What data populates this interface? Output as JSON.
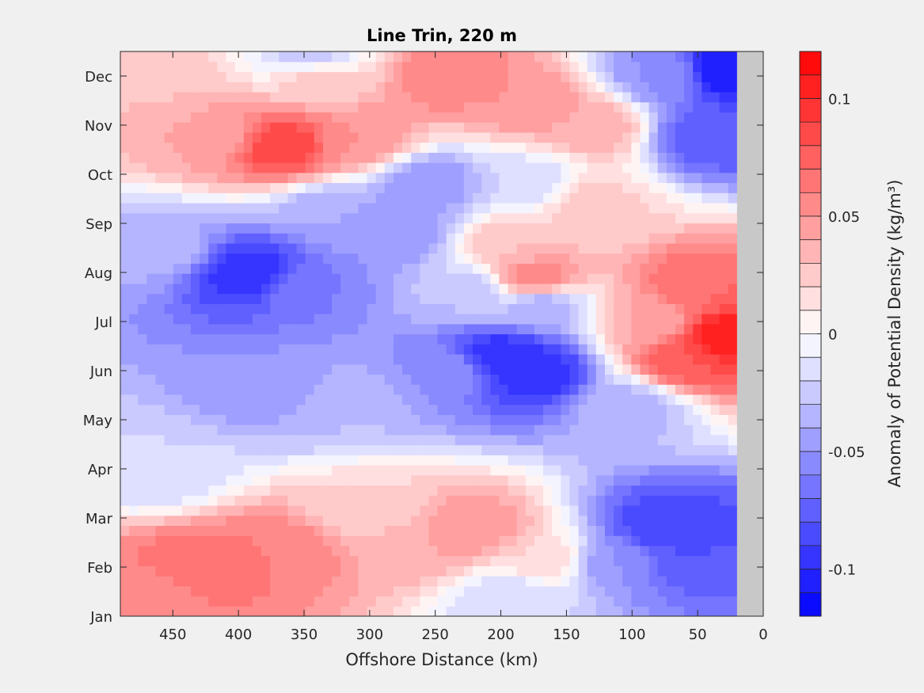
{
  "chart_data": {
    "type": "heatmap",
    "subtype": "filled-contour",
    "title": "Line Trin, 220 m",
    "xlabel": "Offshore Distance (km)",
    "ylabel": "",
    "xlim": [
      490,
      0
    ],
    "x_reversed": true,
    "x_ticks": [
      450,
      400,
      350,
      300,
      250,
      200,
      150,
      100,
      50,
      0
    ],
    "x_tick_labels": [
      "450",
      "400",
      "350",
      "300",
      "250",
      "200",
      "150",
      "100",
      "50",
      "0"
    ],
    "y_categories": [
      "Jan",
      "Feb",
      "Mar",
      "Apr",
      "May",
      "Jun",
      "Jul",
      "Aug",
      "Sep",
      "Oct",
      "Nov",
      "Dec"
    ],
    "ylim_months": [
      0,
      11.5
    ],
    "no_data_region_km": [
      0,
      20
    ],
    "no_data_color": "#c8c8c8",
    "colorbar": {
      "label": "Anomaly of Potential Density (kg/m³)",
      "ticks": [
        0.1,
        0.05,
        0,
        -0.05,
        -0.1
      ],
      "tick_labels": [
        "0.1",
        "0.05",
        "0",
        "-0.05",
        "-0.1"
      ],
      "range": [
        -0.12,
        0.12
      ],
      "levels": 24,
      "colormap": "blue-white-red",
      "colors": {
        "negative": "#0000ff",
        "zero": "#ffffff",
        "positive": "#ff0000"
      }
    },
    "contour_lines": "zero",
    "features": [
      {
        "x": 390,
        "y": 7.0,
        "value": -0.1
      },
      {
        "x": 350,
        "y": 6.7,
        "value": -0.06
      },
      {
        "x": 280,
        "y": 7.8,
        "value": -0.05
      },
      {
        "x": 325,
        "y": 8.2,
        "value": -0.04
      },
      {
        "x": 460,
        "y": 7.5,
        "value": -0.035
      },
      {
        "x": 255,
        "y": 8.8,
        "value": -0.05
      },
      {
        "x": 375,
        "y": 4.7,
        "value": -0.05
      },
      {
        "x": 320,
        "y": 4.3,
        "value": -0.03
      },
      {
        "x": 200,
        "y": 5.3,
        "value": -0.1
      },
      {
        "x": 175,
        "y": 5.0,
        "value": -0.1
      },
      {
        "x": 240,
        "y": 5.0,
        "value": -0.05
      },
      {
        "x": 225,
        "y": 6.6,
        "value": -0.03
      },
      {
        "x": 170,
        "y": 6.3,
        "value": -0.04
      },
      {
        "x": 100,
        "y": 4.3,
        "value": -0.035
      },
      {
        "x": 460,
        "y": 3.0,
        "value": -0.02
      },
      {
        "x": 75,
        "y": 1.8,
        "value": -0.09
      },
      {
        "x": 60,
        "y": 1.2,
        "value": -0.08
      },
      {
        "x": 110,
        "y": 1.1,
        "value": -0.05
      },
      {
        "x": 30,
        "y": 11.1,
        "value": -0.11
      },
      {
        "x": 40,
        "y": 9.8,
        "value": -0.08
      },
      {
        "x": 75,
        "y": 11.0,
        "value": -0.05
      },
      {
        "x": 345,
        "y": 11.4,
        "value": -0.03
      },
      {
        "x": 180,
        "y": 8.8,
        "value": -0.02
      },
      {
        "x": 195,
        "y": 0.4,
        "value": -0.02
      },
      {
        "x": 365,
        "y": 9.6,
        "value": 0.09
      },
      {
        "x": 420,
        "y": 9.8,
        "value": 0.04
      },
      {
        "x": 310,
        "y": 9.7,
        "value": 0.05
      },
      {
        "x": 240,
        "y": 11.0,
        "value": 0.06
      },
      {
        "x": 180,
        "y": 10.5,
        "value": 0.05
      },
      {
        "x": 130,
        "y": 10.0,
        "value": 0.04
      },
      {
        "x": 470,
        "y": 11.3,
        "value": 0.025
      },
      {
        "x": 340,
        "y": 11.0,
        "value": 0.03
      },
      {
        "x": 175,
        "y": 6.9,
        "value": 0.06
      },
      {
        "x": 190,
        "y": 7.6,
        "value": 0.03
      },
      {
        "x": 135,
        "y": 8.4,
        "value": 0.025
      },
      {
        "x": 30,
        "y": 5.7,
        "value": 0.11
      },
      {
        "x": 60,
        "y": 5.2,
        "value": 0.08
      },
      {
        "x": 50,
        "y": 6.7,
        "value": 0.07
      },
      {
        "x": 85,
        "y": 6.0,
        "value": 0.04
      },
      {
        "x": 430,
        "y": 1.0,
        "value": 0.07
      },
      {
        "x": 370,
        "y": 1.3,
        "value": 0.06
      },
      {
        "x": 470,
        "y": 0.4,
        "value": 0.05
      },
      {
        "x": 220,
        "y": 1.8,
        "value": 0.05
      },
      {
        "x": 260,
        "y": 1.4,
        "value": 0.04
      },
      {
        "x": 300,
        "y": 2.2,
        "value": 0.02
      },
      {
        "x": 170,
        "y": 1.2,
        "value": 0.02
      }
    ]
  }
}
